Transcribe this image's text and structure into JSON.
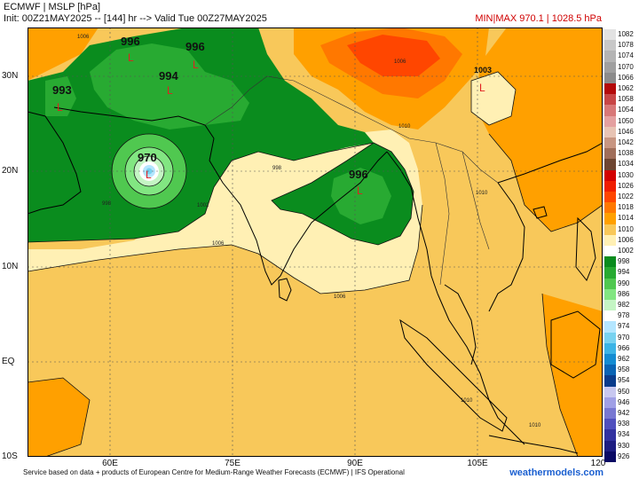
{
  "header": {
    "line1": "ECMWF | MSLP [hPa]",
    "line2": "Init: 00Z21MAY2025 -- [144] hr --> Valid Tue 00Z27MAY2025",
    "minmax": "MIN|MAX 970.1 | 1028.5 hPa"
  },
  "lat_labels": [
    "30N",
    "20N",
    "10N",
    "EQ",
    "10S"
  ],
  "lon_labels": [
    "60E",
    "75E",
    "90E",
    "105E",
    "120"
  ],
  "pressure_centers": [
    {
      "value": "996",
      "marker": "L"
    },
    {
      "value": "996",
      "marker": "L"
    },
    {
      "value": "993",
      "marker": "L"
    },
    {
      "value": "994",
      "marker": "L"
    },
    {
      "value": "970",
      "marker": "L"
    },
    {
      "value": "996",
      "marker": "L"
    },
    {
      "value": "1003",
      "marker": "L"
    }
  ],
  "contour_labels": [
    "1006",
    "1002",
    "998",
    "998",
    "1006",
    "1006",
    "1010",
    "1010",
    "1006",
    "1010",
    "1010"
  ],
  "legend": [
    {
      "label": "1082",
      "color": "#e2e2e2"
    },
    {
      "label": "1078",
      "color": "#c8c8c8"
    },
    {
      "label": "1074",
      "color": "#b4b4b4"
    },
    {
      "label": "1070",
      "color": "#a0a0a0"
    },
    {
      "label": "1066",
      "color": "#8c8c8c"
    },
    {
      "label": "1062",
      "color": "#b40a0a"
    },
    {
      "label": "1058",
      "color": "#c84646"
    },
    {
      "label": "1054",
      "color": "#d87878"
    },
    {
      "label": "1050",
      "color": "#e4a0a0"
    },
    {
      "label": "1046",
      "color": "#e8c4b4"
    },
    {
      "label": "1042",
      "color": "#c89682"
    },
    {
      "label": "1038",
      "color": "#a06e5a"
    },
    {
      "label": "1034",
      "color": "#6e4632"
    },
    {
      "label": "1030",
      "color": "#d20000"
    },
    {
      "label": "1026",
      "color": "#f01e00"
    },
    {
      "label": "1022",
      "color": "#ff4600"
    },
    {
      "label": "1018",
      "color": "#ff7800"
    },
    {
      "label": "1014",
      "color": "#ffa000"
    },
    {
      "label": "1010",
      "color": "#f8c85a"
    },
    {
      "label": "1006",
      "color": "#fff0b4"
    },
    {
      "label": "1002",
      "color": "#ffffff"
    },
    {
      "label": "998",
      "color": "#0a8c1e"
    },
    {
      "label": "994",
      "color": "#28aa32"
    },
    {
      "label": "990",
      "color": "#50c850"
    },
    {
      "label": "986",
      "color": "#82e682"
    },
    {
      "label": "982",
      "color": "#c4f5c4"
    },
    {
      "label": "978",
      "color": "#ffffff"
    },
    {
      "label": "974",
      "color": "#b4e6ff"
    },
    {
      "label": "970",
      "color": "#78d2f0"
    },
    {
      "label": "966",
      "color": "#3cb4e6"
    },
    {
      "label": "962",
      "color": "#148cd2"
    },
    {
      "label": "958",
      "color": "#0a64b4"
    },
    {
      "label": "954",
      "color": "#0a3c8c"
    },
    {
      "label": "950",
      "color": "#c8c8f0"
    },
    {
      "label": "946",
      "color": "#a0a0e6"
    },
    {
      "label": "942",
      "color": "#7878d2"
    },
    {
      "label": "938",
      "color": "#5050be"
    },
    {
      "label": "934",
      "color": "#3232a0"
    },
    {
      "label": "930",
      "color": "#1e1e82"
    },
    {
      "label": "926",
      "color": "#0a0a64"
    }
  ],
  "footer": "Service based on data + products of European Centre for Medium-Range Weather Forecasts (ECMWF) | IFS Operational",
  "brand": "weathermodels.com"
}
